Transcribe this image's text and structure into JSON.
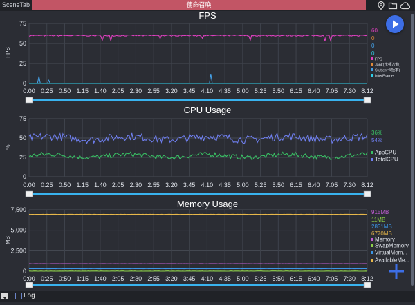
{
  "app": {
    "name": "SceneTab",
    "window_title": "使命召唤"
  },
  "controls": {
    "log_label": "Log"
  },
  "colors": {
    "accent": "#3d6ee6",
    "title_bar": "#c25565",
    "slider": "#39b3ef"
  },
  "time_ticks": [
    "0:00",
    "0:25",
    "0:50",
    "1:15",
    "1:40",
    "2:05",
    "2:30",
    "2:55",
    "3:20",
    "3:45",
    "4:10",
    "4:35",
    "5:00",
    "5:25",
    "5:50",
    "6:15",
    "6:40",
    "7:05",
    "7:30",
    "8:12"
  ],
  "chart_data": [
    {
      "type": "line",
      "title": "FPS",
      "ylabel": "FPS",
      "yticks": [
        "75",
        "50",
        "25",
        "0"
      ],
      "ylim": [
        0,
        75
      ],
      "grid": true,
      "series": [
        {
          "name": "FPS",
          "color": "#e040c0",
          "current": "60",
          "base": 60
        },
        {
          "name": "Jank(卡顿次数)",
          "color": "#e08a3a",
          "current": "0",
          "base": 0
        },
        {
          "name": "Stutter(卡顿率)",
          "color": "#45a0e6",
          "current": "0",
          "base": 0,
          "spikes": [
            [
              0.0293,
              9
            ],
            [
              0.0575,
              4
            ],
            [
              0.5375,
              12
            ]
          ]
        },
        {
          "name": "InterFrame",
          "color": "#2fd0e8",
          "current": "0",
          "base": 0
        }
      ]
    },
    {
      "type": "line",
      "title": "CPU Usage",
      "ylabel": "%",
      "yticks": [
        "75",
        "50",
        "25",
        "0"
      ],
      "ylim": [
        0,
        75
      ],
      "grid": true,
      "series": [
        {
          "name": "AppCPU",
          "color": "#39c064",
          "current": "36%",
          "base": 27
        },
        {
          "name": "TotalCPU",
          "color": "#6f7ff0",
          "current": "54%",
          "base": 50
        }
      ]
    },
    {
      "type": "line",
      "title": "Memory Usage",
      "ylabel": "MB",
      "yticks": [
        "7,500",
        "5,000",
        "2,500",
        "0"
      ],
      "ylim": [
        0,
        7500
      ],
      "grid": true,
      "series": [
        {
          "name": "Memory",
          "color": "#c45ed6",
          "current": "915MB",
          "base": 915
        },
        {
          "name": "SwapMemory",
          "color": "#8fd14a",
          "current": "11MB",
          "base": 11
        },
        {
          "name": "VirtualMem...",
          "color": "#3c96e6",
          "current": "2831MB",
          "base": 300
        },
        {
          "name": "AvailableMe...",
          "color": "#e8b84a",
          "current": "6770MB",
          "base": 6950
        }
      ]
    }
  ]
}
